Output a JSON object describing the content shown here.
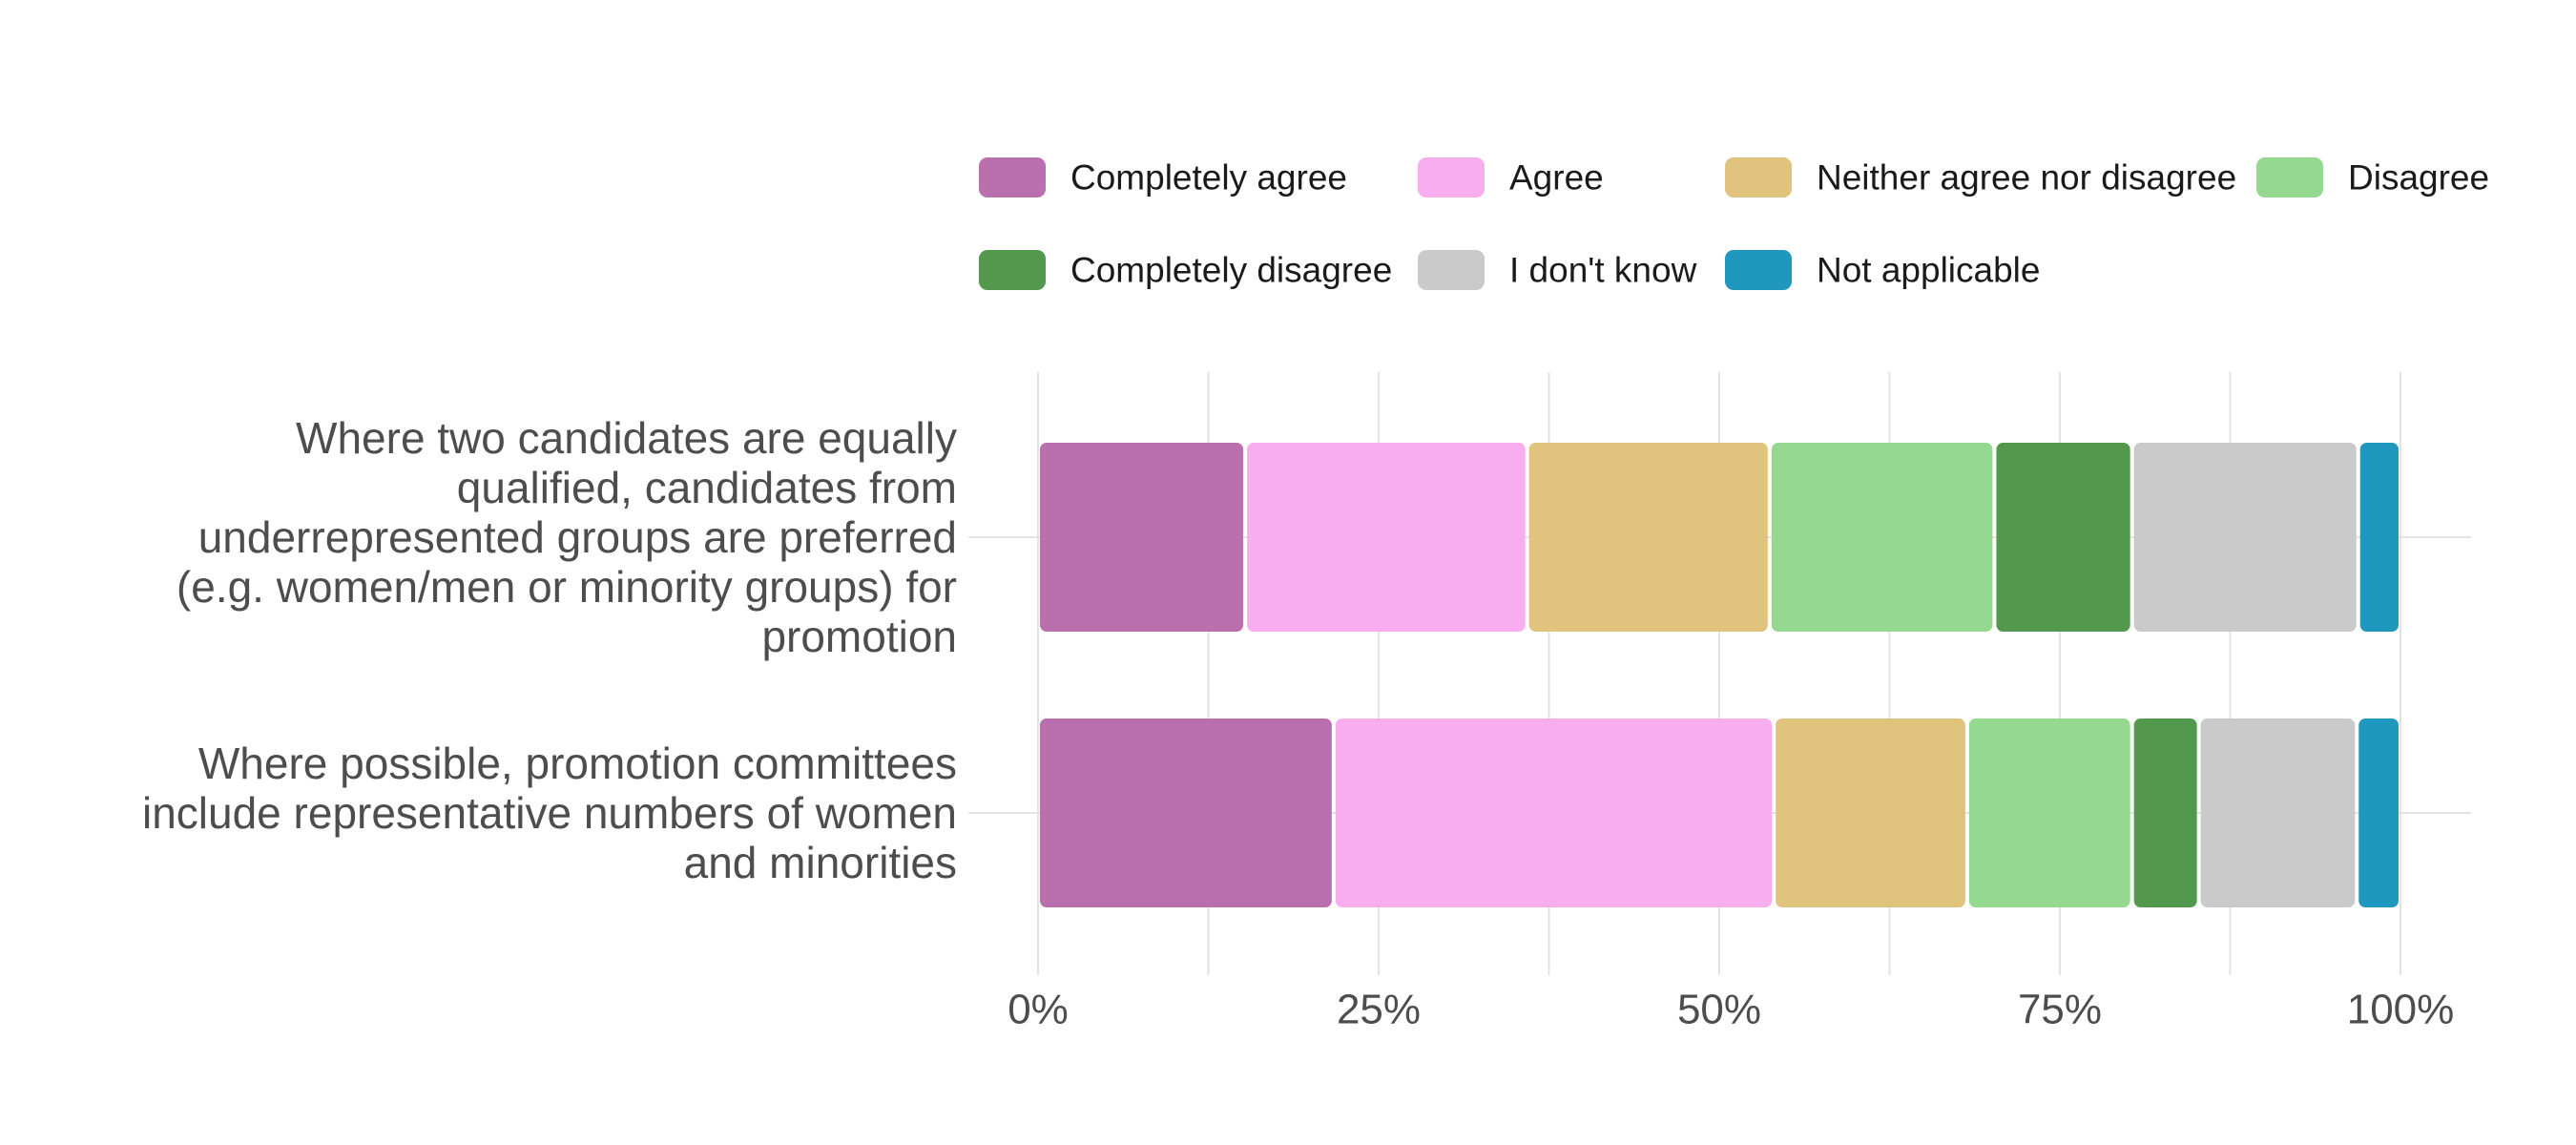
{
  "chart_data": {
    "type": "bar",
    "orientation": "horizontal",
    "stacked": true,
    "normalized": true,
    "title": "",
    "xlabel": "",
    "ylabel": "",
    "xlim": [
      0,
      100
    ],
    "x_ticks": [
      "0%",
      "25%",
      "50%",
      "75%",
      "100%"
    ],
    "grid": true,
    "legend_position": "top",
    "categories": [
      "Where two candidates are equally qualified, candidates from underrepresented groups are preferred (e.g. women/men or minority groups) for promotion",
      "Where possible, promotion committees include representative numbers of women and minorities"
    ],
    "category_lines": [
      [
        "Where two candidates are equally",
        "qualified, candidates from",
        "underrepresented groups are preferred",
        "(e.g. women/men or minority groups) for",
        "promotion"
      ],
      [
        "Where possible, promotion committees",
        "include representative numbers of women",
        "and minorities"
      ]
    ],
    "series": [
      {
        "name": "Completely agree",
        "color": "#BA6FAE",
        "values": [
          15.2,
          21.7
        ]
      },
      {
        "name": "Agree",
        "color": "#F7ADEE",
        "values": [
          20.7,
          32.3
        ]
      },
      {
        "name": "Neither agree nor disagree",
        "color": "#E0C47D",
        "values": [
          17.8,
          14.2
        ]
      },
      {
        "name": "Disagree",
        "color": "#95D990",
        "values": [
          16.5,
          12.1
        ]
      },
      {
        "name": "Completely disagree",
        "color": "#52994D",
        "values": [
          10.1,
          4.9
        ]
      },
      {
        "name": "I don't know",
        "color": "#CACACA",
        "values": [
          16.6,
          11.6
        ]
      },
      {
        "name": "Not applicable",
        "color": "#1F97BF",
        "values": [
          3.1,
          3.2
        ]
      }
    ]
  }
}
